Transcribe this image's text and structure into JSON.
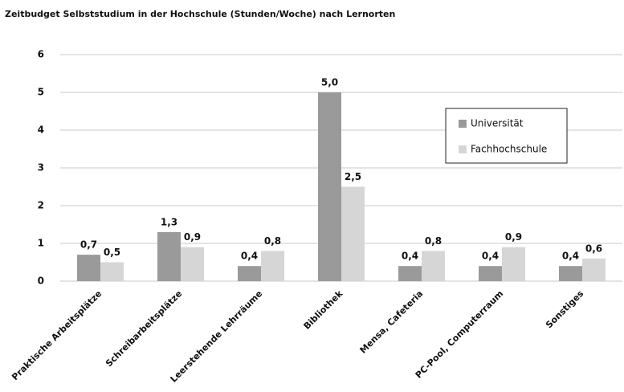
{
  "chart_data": {
    "type": "bar",
    "title": "Zeitbudget Selbststudium in der Hochschule (Stunden/Woche) nach Lernorten",
    "categories": [
      "Praktische Arbeitsplätze",
      "Schreibarbeitsplätze",
      "Leerstehende Lehrräume",
      "Bibliothek",
      "Mensa, Cafeteria",
      "PC-Pool, Computerraum",
      "Sonstiges"
    ],
    "series": [
      {
        "name": "Universität",
        "color": "#9a9a9a",
        "values": [
          0.7,
          1.3,
          0.4,
          5.0,
          0.4,
          0.4,
          0.4
        ],
        "value_labels": [
          "0,7",
          "1,3",
          "0,4",
          "5,0",
          "0,4",
          "0,4",
          "0,4"
        ]
      },
      {
        "name": "Fachhochschule",
        "color": "#d6d6d6",
        "values": [
          0.5,
          0.9,
          0.8,
          2.5,
          0.8,
          0.9,
          0.6
        ],
        "value_labels": [
          "0,5",
          "0,9",
          "0,8",
          "2,5",
          "0,8",
          "0,9",
          "0,6"
        ]
      }
    ],
    "ylim": [
      0,
      6
    ],
    "yticks": [
      0,
      1,
      2,
      3,
      4,
      5,
      6
    ],
    "grid": true,
    "legend": "upper right"
  }
}
